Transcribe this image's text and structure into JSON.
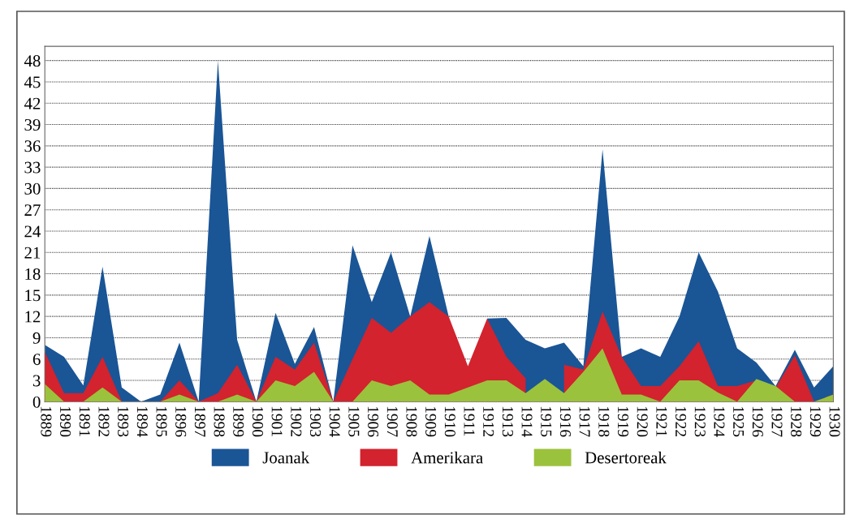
{
  "chart_data": {
    "type": "area",
    "categories": [
      "1889",
      "1890",
      "1891",
      "1892",
      "1893",
      "1894",
      "1895",
      "1896",
      "1897",
      "1898",
      "1899",
      "1900",
      "1901",
      "1902",
      "1903",
      "1904",
      "1905",
      "1906",
      "1907",
      "1908",
      "1909",
      "1910",
      "1911",
      "1912",
      "1913",
      "1914",
      "1915",
      "1916",
      "1917",
      "1918",
      "1919",
      "1920",
      "1921",
      "1922",
      "1923",
      "1924",
      "1925",
      "1926",
      "1927",
      "1928",
      "1929",
      "1930"
    ],
    "series": [
      {
        "name": "Joanak",
        "color": "#1a5596",
        "values": [
          8,
          6.3,
          2.3,
          19,
          2,
          0,
          1,
          8.3,
          0,
          48,
          8.7,
          0,
          12.5,
          5.3,
          10.5,
          0,
          22,
          14,
          21,
          12,
          23.3,
          12,
          null,
          11.7,
          11.8,
          8.7,
          7.5,
          8.3,
          5,
          35.5,
          6.3,
          7.5,
          6.3,
          12,
          21,
          15.5,
          7.5,
          5.5,
          2.2,
          7.3,
          2,
          5
        ]
      },
      {
        "name": "Amerikara",
        "color": "#d2232e",
        "values": [
          7,
          1.2,
          1.2,
          6.3,
          0,
          0,
          0,
          3,
          0,
          1.2,
          5.2,
          0,
          6.3,
          4.5,
          8.3,
          0,
          6,
          11.8,
          9.7,
          12,
          14,
          12,
          5,
          11.7,
          6.3,
          3.3,
          null,
          5.2,
          4.5,
          12.7,
          6.3,
          2.2,
          2.2,
          5,
          8.5,
          2.2,
          2.2,
          3,
          2,
          6.5,
          0,
          1
        ]
      },
      {
        "name": "Desertoreak",
        "color": "#9bc23c",
        "values": [
          2.5,
          0,
          0,
          2,
          0,
          0,
          0,
          1,
          0,
          0,
          1,
          0,
          3,
          2.2,
          4.2,
          0,
          0,
          3,
          2.2,
          3,
          1,
          1,
          2,
          3,
          3,
          1.2,
          3.2,
          1.2,
          4.2,
          7.5,
          1,
          1,
          0,
          3,
          3,
          1.3,
          0,
          3.2,
          2.2,
          0,
          0,
          1
        ]
      }
    ],
    "ylim": [
      0,
      50
    ],
    "yticks": [
      0,
      3,
      6,
      9,
      12,
      15,
      18,
      21,
      24,
      27,
      30,
      33,
      36,
      39,
      42,
      45,
      48
    ],
    "grid": "y",
    "legend": "bottom"
  }
}
